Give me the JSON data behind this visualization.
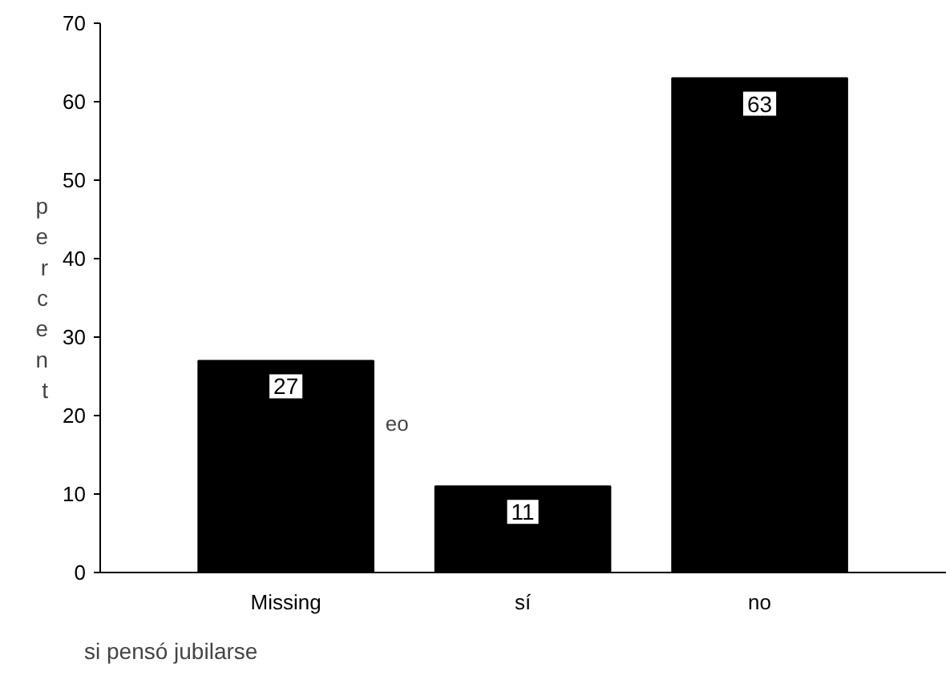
{
  "chart_data": {
    "type": "bar",
    "xlabel": "si pensó jubilarse",
    "ylabel": "percent",
    "categories": [
      "Missing",
      "sí",
      "no"
    ],
    "values": [
      27,
      11,
      63
    ],
    "color": "#000000",
    "ylim": [
      0,
      70
    ],
    "yticks": [
      0,
      10,
      20,
      30,
      40,
      50,
      60,
      70
    ],
    "data_labels": true,
    "grid": false,
    "annotations": [
      "eo"
    ]
  }
}
